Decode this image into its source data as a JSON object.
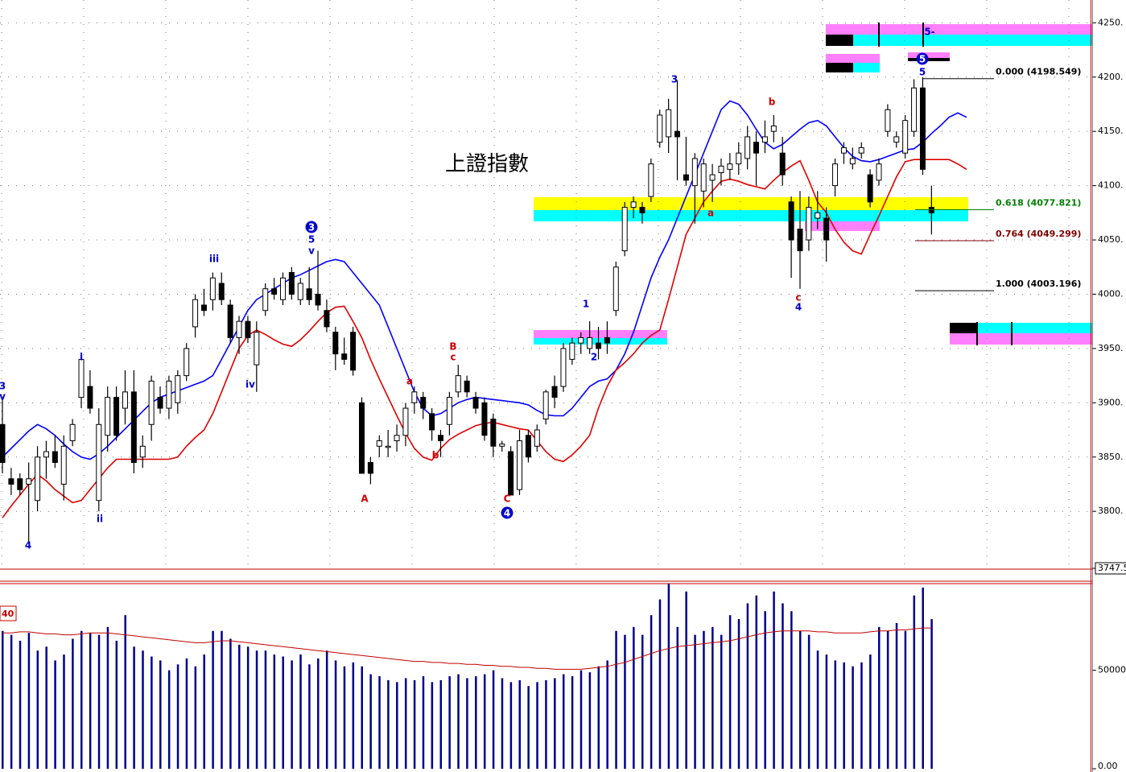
{
  "chart_data": {
    "type": "candlestick",
    "title": "上證指數",
    "ylim": [
      3747.5,
      4271
    ],
    "yticks": [
      {
        "value": 4250,
        "label": "4250."
      },
      {
        "value": 4200,
        "label": "4200."
      },
      {
        "value": 4150,
        "label": "4150."
      },
      {
        "value": 4100,
        "label": "4100."
      },
      {
        "value": 4050,
        "label": "4050."
      },
      {
        "value": 4000,
        "label": "4000."
      },
      {
        "value": 3950,
        "label": "3950."
      },
      {
        "value": 3900,
        "label": "3900."
      },
      {
        "value": 3850,
        "label": "3850."
      },
      {
        "value": 3800,
        "label": "3800."
      },
      3747.5
    ],
    "grid": true,
    "ohlc": [
      [
        3880,
        3905,
        3835,
        3845
      ],
      [
        3830,
        3840,
        3815,
        3825
      ],
      [
        3830,
        3835,
        3815,
        3820
      ],
      [
        3825,
        3845,
        3770,
        3830
      ],
      [
        3810,
        3860,
        3800,
        3850
      ],
      [
        3850,
        3865,
        3830,
        3855
      ],
      [
        3855,
        3870,
        3840,
        3845
      ],
      [
        3825,
        3870,
        3810,
        3860
      ],
      [
        3865,
        3885,
        3860,
        3880
      ],
      [
        3905,
        3945,
        3895,
        3940
      ],
      [
        3915,
        3930,
        3890,
        3895
      ],
      [
        3810,
        3895,
        3800,
        3880
      ],
      [
        3870,
        3915,
        3855,
        3905
      ],
      [
        3905,
        3915,
        3865,
        3870
      ],
      [
        3895,
        3930,
        3880,
        3910
      ],
      [
        3910,
        3930,
        3835,
        3845
      ],
      [
        3850,
        3870,
        3840,
        3860
      ],
      [
        3880,
        3925,
        3865,
        3920
      ],
      [
        3905,
        3915,
        3890,
        3895
      ],
      [
        3895,
        3925,
        3885,
        3920
      ],
      [
        3900,
        3930,
        3890,
        3925
      ],
      [
        3925,
        3955,
        3920,
        3950
      ],
      [
        3970,
        4000,
        3960,
        3995
      ],
      [
        3990,
        4005,
        3980,
        3985
      ],
      [
        3995,
        4020,
        3985,
        4015
      ],
      [
        4010,
        4020,
        3990,
        3995
      ],
      [
        3990,
        3995,
        3955,
        3960
      ],
      [
        3960,
        3980,
        3945,
        3975
      ],
      [
        3975,
        3980,
        3955,
        3960
      ],
      [
        3935,
        3975,
        3910,
        3965
      ],
      [
        3985,
        4010,
        3980,
        4005
      ],
      [
        4005,
        4015,
        3995,
        4000
      ],
      [
        3995,
        4020,
        3990,
        4015
      ],
      [
        4020,
        4025,
        3995,
        4000
      ],
      [
        3995,
        4015,
        3990,
        4010
      ],
      [
        4005,
        4025,
        3990,
        3995
      ],
      [
        4000,
        4040,
        3985,
        3990
      ],
      [
        3985,
        3995,
        3965,
        3970
      ],
      [
        3965,
        3970,
        3930,
        3945
      ],
      [
        3945,
        3960,
        3935,
        3940
      ],
      [
        3965,
        3970,
        3925,
        3930
      ],
      [
        3900,
        3905,
        3835,
        3835
      ],
      [
        3845,
        3850,
        3825,
        3835
      ],
      [
        3860,
        3870,
        3850,
        3865
      ],
      [
        3860,
        3875,
        3850,
        3860
      ],
      [
        3865,
        3880,
        3855,
        3870
      ],
      [
        3870,
        3900,
        3860,
        3895
      ],
      [
        3900,
        3915,
        3890,
        3910
      ],
      [
        3905,
        3910,
        3885,
        3895
      ],
      [
        3890,
        3895,
        3865,
        3875
      ],
      [
        3870,
        3875,
        3850,
        3865
      ],
      [
        3880,
        3910,
        3870,
        3905
      ],
      [
        3910,
        3935,
        3905,
        3925
      ],
      [
        3920,
        3925,
        3905,
        3910
      ],
      [
        3905,
        3910,
        3890,
        3895
      ],
      [
        3900,
        3905,
        3865,
        3870
      ],
      [
        3885,
        3890,
        3850,
        3860
      ],
      [
        3860,
        3865,
        3855,
        3862
      ],
      [
        3855,
        3860,
        3815,
        3815
      ],
      [
        3820,
        3875,
        3815,
        3865
      ],
      [
        3870,
        3875,
        3845,
        3850
      ],
      [
        3860,
        3880,
        3855,
        3875
      ],
      [
        3885,
        3912,
        3880,
        3910
      ],
      [
        3915,
        3925,
        3895,
        3905
      ],
      [
        3915,
        3955,
        3910,
        3950
      ],
      [
        3940,
        3960,
        3935,
        3955
      ],
      [
        3955,
        3965,
        3945,
        3960
      ],
      [
        3950,
        3975,
        3945,
        3960
      ],
      [
        3955,
        3970,
        3940,
        3950
      ],
      [
        3960,
        3975,
        3945,
        3955
      ],
      [
        3985,
        4030,
        3980,
        4025
      ],
      [
        4040,
        4085,
        4035,
        4080
      ],
      [
        4080,
        4090,
        4070,
        4085
      ],
      [
        4080,
        4085,
        4065,
        4075
      ],
      [
        4090,
        4125,
        4085,
        4120
      ],
      [
        4140,
        4170,
        4135,
        4165
      ],
      [
        4145,
        4180,
        4130,
        4170
      ],
      [
        4150,
        4197,
        4105,
        4145
      ],
      [
        4110,
        4145,
        4100,
        4105
      ],
      [
        4100,
        4130,
        4065,
        4125
      ],
      [
        4095,
        4125,
        4080,
        4120
      ],
      [
        4105,
        4120,
        4085,
        4110
      ],
      [
        4112,
        4125,
        4100,
        4118
      ],
      [
        4115,
        4130,
        4105,
        4120
      ],
      [
        4120,
        4140,
        4110,
        4130
      ],
      [
        4125,
        4155,
        4115,
        4145
      ],
      [
        4140,
        4150,
        4100,
        4130
      ],
      [
        4140,
        4160,
        4130,
        4145
      ],
      [
        4150,
        4165,
        4140,
        4155
      ],
      [
        4130,
        4145,
        4100,
        4110
      ],
      [
        4085,
        4090,
        4015,
        4050
      ],
      [
        4060,
        4095,
        4005,
        4040
      ],
      [
        4050,
        4090,
        4040,
        4080
      ],
      [
        4070,
        4095,
        4060,
        4075
      ],
      [
        4070,
        4080,
        4030,
        4050
      ],
      [
        4100,
        4125,
        4090,
        4120
      ],
      [
        4130,
        4140,
        4120,
        4135
      ],
      [
        4120,
        4135,
        4115,
        4125
      ],
      [
        4130,
        4140,
        4125,
        4135
      ],
      [
        4110,
        4115,
        4080,
        4085
      ],
      [
        4105,
        4125,
        4100,
        4120
      ],
      [
        4150,
        4175,
        4145,
        4170
      ],
      [
        4140,
        4150,
        4135,
        4145
      ],
      [
        4130,
        4165,
        4125,
        4160
      ],
      [
        4150,
        4198,
        4145,
        4190
      ],
      [
        4190,
        4200,
        4110,
        4115
      ],
      [
        4080,
        4100,
        4055,
        4075
      ],
      null,
      null,
      null,
      null
    ],
    "series": [
      {
        "color": "#0000ff",
        "values": [
          3850,
          3858,
          3866,
          3874,
          3880,
          3876,
          3870,
          3862,
          3855,
          3850,
          3848,
          3853,
          3860,
          3868,
          3876,
          3884,
          3892,
          3900,
          3905,
          3908,
          3911,
          3914,
          3917,
          3920,
          3925,
          3940,
          3955,
          3970,
          3985,
          3995,
          4000,
          4005,
          4010,
          4015,
          4018,
          4022,
          4026,
          4030,
          4032,
          4030,
          4020,
          4010,
          4000,
          3990,
          3970,
          3950,
          3930,
          3910,
          3895,
          3888,
          3890,
          3895,
          3900,
          3903,
          3905,
          3904,
          3903,
          3902,
          3901,
          3900,
          3898,
          3893,
          3889,
          3888,
          3888,
          3895,
          3905,
          3915,
          3920,
          3922,
          3930,
          3945,
          3965,
          3990,
          4015,
          4034,
          4050,
          4070,
          4090,
          4110,
          4130,
          4150,
          4170,
          4178,
          4175,
          4165,
          4152,
          4140,
          4134,
          4138,
          4145,
          4152,
          4158,
          4160,
          4155,
          4145,
          4135,
          4127,
          4123,
          4122,
          4124,
          4127,
          4130,
          4133,
          4134,
          4140,
          4148,
          4155,
          4163,
          4167,
          4163
        ]
      },
      {
        "color": "#e00000",
        "values": [
          3794,
          3805,
          3815,
          3825,
          3834,
          3828,
          3820,
          3814,
          3808,
          3810,
          3820,
          3830,
          3840,
          3848,
          3848,
          3848,
          3848,
          3848,
          3848,
          3848,
          3850,
          3860,
          3868,
          3875,
          3890,
          3910,
          3930,
          3950,
          3962,
          3967,
          3963,
          3958,
          3954,
          3952,
          3958,
          3966,
          3975,
          3983,
          3988,
          3989,
          3975,
          3960,
          3940,
          3922,
          3905,
          3888,
          3872,
          3858,
          3850,
          3847,
          3858,
          3866,
          3871,
          3875,
          3879,
          3881,
          3882,
          3880,
          3878,
          3876,
          3875,
          3865,
          3855,
          3848,
          3846,
          3852,
          3860,
          3870,
          3895,
          3915,
          3930,
          3937,
          3945,
          3955,
          3962,
          3967,
          3995,
          4025,
          4055,
          4070,
          4085,
          4095,
          4104,
          4106,
          4104,
          4101,
          4099,
          4097,
          4105,
          4112,
          4118,
          4123,
          4105,
          4085,
          4075,
          4060,
          4048,
          4040,
          4037,
          4055,
          4072,
          4090,
          4108,
          4122,
          4124,
          4124,
          4124,
          4124,
          4124,
          4120,
          4115
        ]
      }
    ],
    "fib_levels": [
      {
        "value": 4198.549,
        "label": "0.000 (4198.549)",
        "color": "#000000"
      },
      {
        "value": 4077.821,
        "label": "0.618 (4077.821)",
        "color": "#008000"
      },
      {
        "value": 4049.299,
        "label": "0.764 (4049.299)",
        "color": "#800000"
      },
      {
        "value": 4003.196,
        "label": "1.000 (4003.196)",
        "color": "#000000"
      }
    ],
    "annotations": [
      "3",
      "v",
      "4",
      "i",
      "ii",
      "iii",
      "iv",
      "3",
      "5",
      "v",
      "A",
      "a",
      "b",
      "B",
      "c",
      "C",
      "4",
      "1",
      "2",
      "3",
      "a",
      "b",
      "c",
      "4",
      "5",
      "5",
      "5-"
    ],
    "volume": {
      "ylim": [
        0,
        94000
      ],
      "yticks": [
        50000,
        {
          "value": 0,
          "label": "0.00"
        }
      ],
      "color": "#00008b",
      "ma_color": "#c00000",
      "indicator_label": "40",
      "values": [
        70000,
        68000,
        65000,
        69000,
        60000,
        62000,
        55000,
        58000,
        66000,
        70000,
        69000,
        68000,
        72000,
        65000,
        78000,
        62000,
        60000,
        57000,
        55000,
        50000,
        53000,
        56000,
        52000,
        58000,
        70000,
        70000,
        66000,
        63000,
        62000,
        60000,
        60000,
        58000,
        57000,
        55000,
        58000,
        53000,
        56000,
        60000,
        55000,
        52000,
        54000,
        52000,
        48000,
        47000,
        45000,
        44000,
        46000,
        45000,
        47000,
        44000,
        45000,
        47000,
        48000,
        46000,
        47000,
        48000,
        50000,
        46000,
        44000,
        45000,
        42000,
        44000,
        45000,
        46000,
        48000,
        47000,
        50000,
        49000,
        52000,
        55000,
        70000,
        68000,
        72000,
        68000,
        78000,
        86000,
        94000,
        72000,
        90000,
        68000,
        70000,
        72000,
        68000,
        78000,
        76000,
        84000,
        88000,
        80000,
        90000,
        84000,
        80000,
        70000,
        68000,
        60000,
        58000,
        55000,
        54000,
        52000,
        54000,
        58000,
        72000,
        70000,
        74000,
        70000,
        88000,
        92000,
        76000,
        null,
        null,
        null,
        null
      ],
      "ma": [
        69000,
        69000,
        69500,
        69500,
        69000,
        68500,
        68500,
        68000,
        68000,
        68500,
        69000,
        69000,
        69000,
        68500,
        68000,
        67500,
        67000,
        66500,
        66000,
        65500,
        65000,
        64500,
        64000,
        64000,
        64500,
        65000,
        65000,
        64500,
        64000,
        63500,
        63000,
        62500,
        62000,
        61500,
        61000,
        60500,
        60000,
        59500,
        59000,
        58500,
        58000,
        57500,
        57000,
        56500,
        56000,
        55500,
        55000,
        54500,
        54500,
        54000,
        54000,
        53500,
        53500,
        53000,
        53000,
        52500,
        52500,
        52000,
        52000,
        51500,
        51500,
        51000,
        51000,
        50500,
        50500,
        50500,
        50500,
        51000,
        51500,
        52000,
        53000,
        54000,
        55500,
        57000,
        58500,
        60000,
        61000,
        62000,
        62500,
        63000,
        63500,
        64000,
        64500,
        65000,
        66000,
        67000,
        68000,
        69000,
        69500,
        70000,
        70000,
        70000,
        70000,
        69500,
        69500,
        69000,
        69000,
        69000,
        69000,
        69500,
        70000,
        70000,
        70500,
        70500,
        71000,
        71500,
        71500,
        null,
        null,
        null,
        null
      ]
    }
  }
}
